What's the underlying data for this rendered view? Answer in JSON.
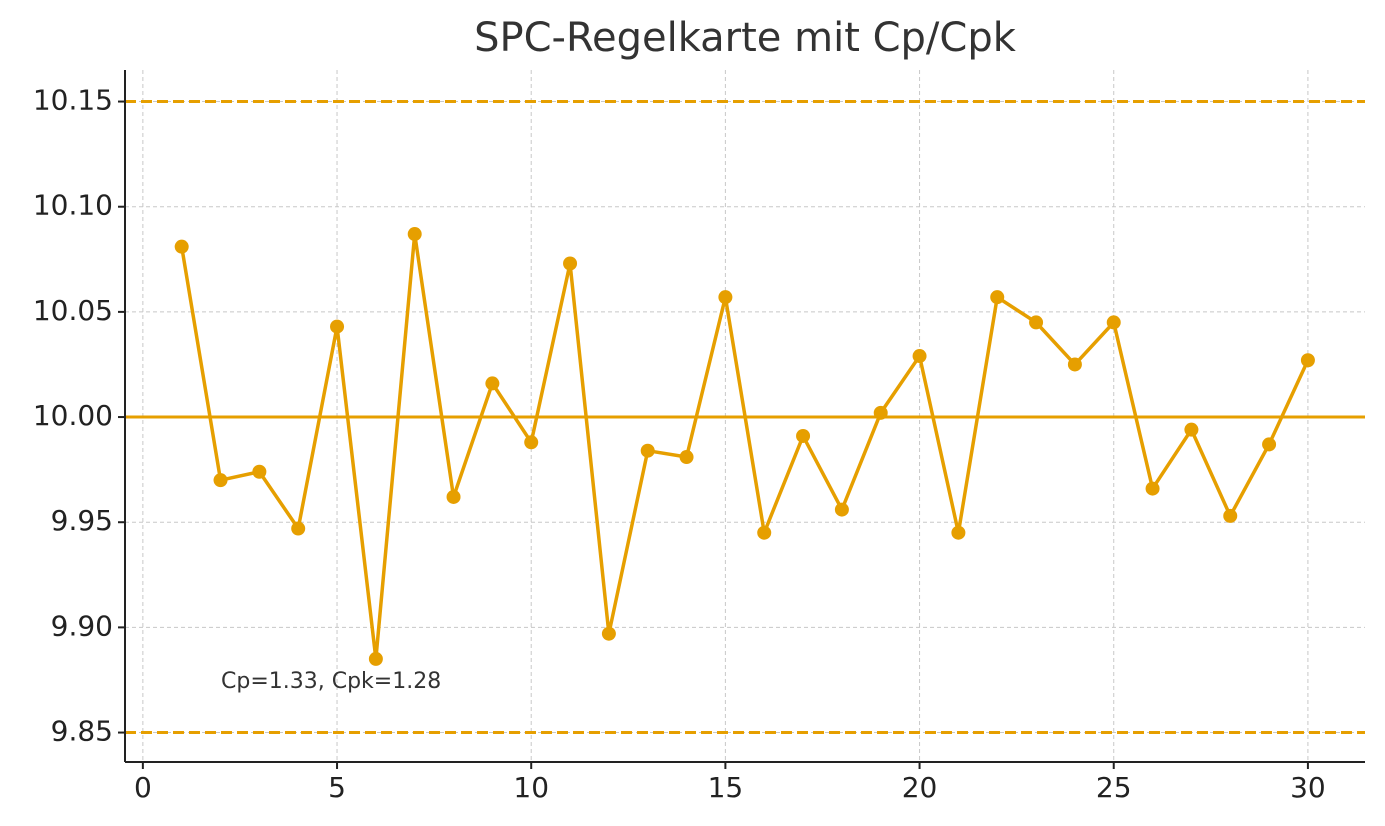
{
  "chart_data": {
    "type": "line",
    "title": "SPC-Regelkarte mit Cp/Cpk",
    "annotation": "Cp=1.33, Cpk=1.28",
    "x": [
      1,
      2,
      3,
      4,
      5,
      6,
      7,
      8,
      9,
      10,
      11,
      12,
      13,
      14,
      15,
      16,
      17,
      18,
      19,
      20,
      21,
      22,
      23,
      24,
      25,
      26,
      27,
      28,
      29,
      30
    ],
    "series": [
      {
        "color": "#E69F00",
        "values": [
          10.081,
          9.97,
          9.974,
          9.947,
          10.043,
          9.885,
          10.087,
          9.962,
          10.016,
          9.988,
          10.073,
          9.897,
          9.984,
          9.981,
          10.057,
          9.945,
          9.991,
          9.956,
          10.002,
          10.029,
          9.945,
          10.057,
          10.045,
          10.025,
          10.045,
          9.966,
          9.994,
          9.953,
          9.987,
          10.027
        ]
      }
    ],
    "hlines": [
      {
        "value": 10.15,
        "style": "dashed",
        "color": "#E69F00"
      },
      {
        "value": 10.0,
        "style": "solid",
        "color": "#E69F00"
      },
      {
        "value": 9.85,
        "style": "dashed",
        "color": "#E69F00"
      }
    ],
    "xlim": [
      -0.46,
      31.47
    ],
    "ylim": [
      9.836,
      10.165
    ],
    "xticks": [
      0,
      5,
      10,
      15,
      20,
      25,
      30
    ],
    "yticks": [
      9.85,
      {
        "value": 9.9,
        "label": "9.90"
      },
      9.95,
      {
        "value": 10.0,
        "label": "10.00"
      },
      10.05,
      {
        "value": 10.1,
        "label": "10.10"
      },
      10.15
    ],
    "grid": true
  }
}
